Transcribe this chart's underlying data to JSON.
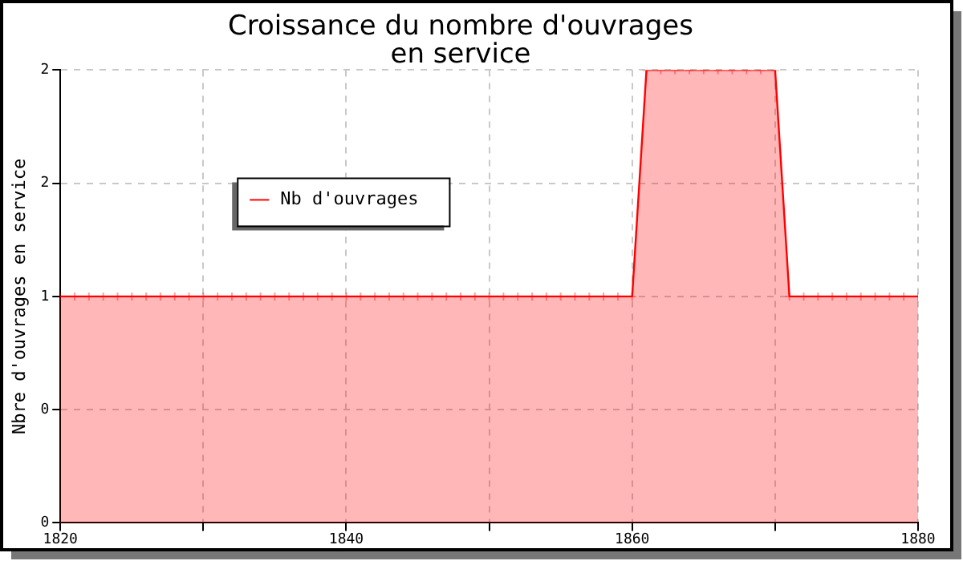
{
  "chart_data": {
    "type": "area",
    "title": "Croissance du nombre d'ouvrages en service",
    "ylabel": "Nbre d'ouvrages en service",
    "x": [
      1820,
      1821,
      1822,
      1823,
      1824,
      1825,
      1826,
      1827,
      1828,
      1829,
      1830,
      1831,
      1832,
      1833,
      1834,
      1835,
      1836,
      1837,
      1838,
      1839,
      1840,
      1841,
      1842,
      1843,
      1844,
      1845,
      1846,
      1847,
      1848,
      1849,
      1850,
      1851,
      1852,
      1853,
      1854,
      1855,
      1856,
      1857,
      1858,
      1859,
      1860,
      1861,
      1862,
      1863,
      1864,
      1865,
      1866,
      1867,
      1868,
      1869,
      1870,
      1871,
      1872,
      1873,
      1874,
      1875,
      1876,
      1877,
      1878,
      1879,
      1880
    ],
    "series": [
      {
        "name": "Nb d'ouvrages",
        "color": "#ff0000",
        "values": [
          1,
          1,
          1,
          1,
          1,
          1,
          1,
          1,
          1,
          1,
          1,
          1,
          1,
          1,
          1,
          1,
          1,
          1,
          1,
          1,
          1,
          1,
          1,
          1,
          1,
          1,
          1,
          1,
          1,
          1,
          1,
          1,
          1,
          1,
          1,
          1,
          1,
          1,
          1,
          1,
          1,
          2,
          2,
          2,
          2,
          2,
          2,
          2,
          2,
          2,
          2,
          1,
          1,
          1,
          1,
          1,
          1,
          1,
          1,
          1,
          1
        ]
      }
    ],
    "xlim": [
      1820,
      1880
    ],
    "xticks": [
      1820,
      {
        "value": 1830,
        "label": null
      },
      1840,
      {
        "value": 1850,
        "label": null
      },
      1860,
      {
        "value": 1870,
        "label": null
      },
      1880
    ],
    "ylim": [
      0,
      2
    ],
    "yticks": [
      0,
      {
        "value": 0.5,
        "label": "0"
      },
      1,
      {
        "value": 1.5,
        "label": "2"
      },
      2
    ],
    "grid": true,
    "legend": "top left",
    "marker": "cross"
  }
}
